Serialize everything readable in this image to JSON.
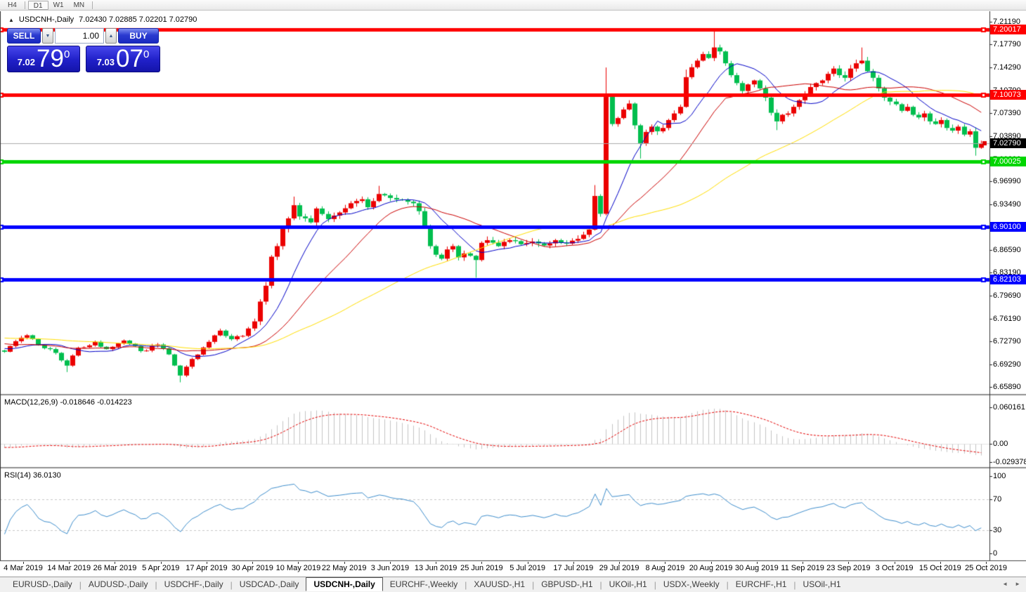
{
  "toolbar": {
    "timeframes": [
      {
        "label": "H4",
        "active": false
      },
      {
        "label": "D1",
        "active": true
      },
      {
        "label": "W1",
        "active": false
      },
      {
        "label": "MN",
        "active": false
      }
    ]
  },
  "chart_header": {
    "collapse_icon": "▲",
    "symbol_title": "USDCNH-,Daily",
    "ohlc_text": "7.02430 7.02885 7.02201 7.02790"
  },
  "trade_panel": {
    "sell_label": "SELL",
    "buy_label": "BUY",
    "volume_value": "1.00",
    "volume_down_icon": "▼",
    "volume_up_icon": "▲",
    "sell_price_small": "7.02",
    "sell_price_big": "79",
    "sell_price_sup": "0",
    "buy_price_small": "7.03",
    "buy_price_big": "07",
    "buy_price_sup": "0"
  },
  "pane_labels": {
    "macd": "MACD(12,26,9) -0.018646 -0.014223",
    "rsi": "RSI(14) 36.0130"
  },
  "chart_data": {
    "type": "candlestick_with_indicators",
    "symbol": "USDCNH-,Daily",
    "ohlc_display": [
      "7.02430",
      "7.02885",
      "7.02201",
      "7.02790"
    ],
    "y_axis_ticks": [
      "7.21190",
      "7.17790",
      "7.14290",
      "7.10790",
      "7.07390",
      "7.03890",
      "7.00390",
      "6.96990",
      "6.93490",
      "6.89990",
      "6.86590",
      "6.83190",
      "6.79690",
      "6.76190",
      "6.72790",
      "6.69290",
      "6.65890"
    ],
    "x_axis_labels": [
      "4 Mar 2019",
      "14 Mar 2019",
      "26 Mar 2019",
      "5 Apr 2019",
      "17 Apr 2019",
      "30 Apr 2019",
      "10 May 2019",
      "22 May 2019",
      "3 Jun 2019",
      "13 Jun 2019",
      "25 Jun 2019",
      "5 Jul 2019",
      "17 Jul 2019",
      "29 Jul 2019",
      "8 Aug 2019",
      "20 Aug 2019",
      "30 Aug 2019",
      "11 Sep 2019",
      "23 Sep 2019",
      "3 Oct 2019",
      "15 Oct 2019",
      "25 Oct 2019"
    ],
    "hlines": [
      {
        "price": 7.20017,
        "label": "7.20017",
        "color": "#ff0000"
      },
      {
        "price": 7.10073,
        "label": "7.10073",
        "color": "#ff0000"
      },
      {
        "price": 7.00025,
        "label": "7.00025",
        "color": "#00d600"
      },
      {
        "price": 6.901,
        "label": "6.90100",
        "color": "#0000ff"
      },
      {
        "price": 6.82103,
        "label": "6.82103",
        "color": "#0000ff"
      }
    ],
    "current_price": {
      "value": 7.0279,
      "label": "7.02790",
      "tag_color": "#000000"
    },
    "candle_count": 173,
    "pre_anchors": [
      [
        -60,
        6.758
      ],
      [
        -50,
        6.742
      ],
      [
        -40,
        6.732
      ],
      [
        -30,
        6.748
      ],
      [
        -20,
        6.738
      ],
      [
        -10,
        6.722
      ],
      [
        -5,
        6.718
      ],
      [
        -1,
        6.714
      ]
    ],
    "close_anchors": [
      [
        0,
        6.712
      ],
      [
        2,
        6.728
      ],
      [
        4,
        6.737
      ],
      [
        6,
        6.722
      ],
      [
        8,
        6.716
      ],
      [
        11,
        6.691
      ],
      [
        13,
        6.718
      ],
      [
        16,
        6.727
      ],
      [
        18,
        6.716
      ],
      [
        21,
        6.729
      ],
      [
        24,
        6.713
      ],
      [
        27,
        6.723
      ],
      [
        29,
        6.708
      ],
      [
        31,
        6.676
      ],
      [
        33,
        6.701
      ],
      [
        36,
        6.727
      ],
      [
        38,
        6.744
      ],
      [
        40,
        6.731
      ],
      [
        42,
        6.736
      ],
      [
        44,
        6.758
      ],
      [
        45,
        6.788
      ],
      [
        46,
        6.812
      ],
      [
        47,
        6.856
      ],
      [
        48,
        6.872
      ],
      [
        49,
        6.898
      ],
      [
        50,
        6.914
      ],
      [
        51,
        6.934
      ],
      [
        52,
        6.917
      ],
      [
        54,
        6.908
      ],
      [
        55,
        6.929
      ],
      [
        57,
        6.913
      ],
      [
        59,
        6.923
      ],
      [
        61,
        6.937
      ],
      [
        63,
        6.943
      ],
      [
        64,
        6.931
      ],
      [
        66,
        6.951
      ],
      [
        68,
        6.945
      ],
      [
        70,
        6.942
      ],
      [
        72,
        6.937
      ],
      [
        73,
        6.925
      ],
      [
        74,
        6.903
      ],
      [
        75,
        6.872
      ],
      [
        76,
        6.859
      ],
      [
        77,
        6.853
      ],
      [
        78,
        6.867
      ],
      [
        79,
        6.872
      ],
      [
        80,
        6.855
      ],
      [
        81,
        6.861
      ],
      [
        83,
        6.851
      ],
      [
        84,
        6.877
      ],
      [
        85,
        6.881
      ],
      [
        87,
        6.872
      ],
      [
        89,
        6.881
      ],
      [
        91,
        6.875
      ],
      [
        93,
        6.879
      ],
      [
        95,
        6.873
      ],
      [
        97,
        6.881
      ],
      [
        99,
        6.876
      ],
      [
        101,
        6.883
      ],
      [
        103,
        6.897
      ],
      [
        104,
        6.948
      ],
      [
        105,
        6.921
      ],
      [
        106,
        7.098
      ],
      [
        107,
        7.057
      ],
      [
        108,
        7.066
      ],
      [
        109,
        7.079
      ],
      [
        110,
        7.088
      ],
      [
        111,
        7.055
      ],
      [
        112,
        7.028
      ],
      [
        113,
        7.045
      ],
      [
        114,
        7.053
      ],
      [
        115,
        7.046
      ],
      [
        116,
        7.051
      ],
      [
        117,
        7.063
      ],
      [
        118,
        7.073
      ],
      [
        119,
        7.083
      ],
      [
        120,
        7.128
      ],
      [
        121,
        7.143
      ],
      [
        122,
        7.153
      ],
      [
        123,
        7.163
      ],
      [
        124,
        7.157
      ],
      [
        125,
        7.173
      ],
      [
        126,
        7.167
      ],
      [
        127,
        7.149
      ],
      [
        128,
        7.131
      ],
      [
        129,
        7.119
      ],
      [
        130,
        7.107
      ],
      [
        131,
        7.117
      ],
      [
        132,
        7.123
      ],
      [
        133,
        7.111
      ],
      [
        134,
        7.097
      ],
      [
        135,
        7.074
      ],
      [
        136,
        7.061
      ],
      [
        137,
        7.071
      ],
      [
        138,
        7.073
      ],
      [
        139,
        7.083
      ],
      [
        140,
        7.093
      ],
      [
        141,
        7.103
      ],
      [
        142,
        7.113
      ],
      [
        143,
        7.119
      ],
      [
        144,
        7.123
      ],
      [
        145,
        7.133
      ],
      [
        146,
        7.141
      ],
      [
        147,
        7.131
      ],
      [
        148,
        7.127
      ],
      [
        149,
        7.141
      ],
      [
        150,
        7.149
      ],
      [
        151,
        7.153
      ],
      [
        152,
        7.137
      ],
      [
        153,
        7.127
      ],
      [
        154,
        7.111
      ],
      [
        155,
        7.097
      ],
      [
        156,
        7.091
      ],
      [
        157,
        7.087
      ],
      [
        158,
        7.077
      ],
      [
        159,
        7.083
      ],
      [
        160,
        7.071
      ],
      [
        161,
        7.067
      ],
      [
        162,
        7.073
      ],
      [
        163,
        7.061
      ],
      [
        164,
        7.057
      ],
      [
        165,
        7.063
      ],
      [
        166,
        7.051
      ],
      [
        167,
        7.047
      ],
      [
        168,
        7.053
      ],
      [
        169,
        7.041
      ],
      [
        170,
        7.046
      ],
      [
        171,
        7.021
      ],
      [
        172,
        7.0279
      ]
    ],
    "special_wicks": [
      [
        11,
        0,
        -0.008
      ],
      [
        31,
        0,
        -0.009
      ],
      [
        51,
        0.01,
        0
      ],
      [
        66,
        0.011,
        0
      ],
      [
        83,
        0,
        -0.024
      ],
      [
        104,
        0.014,
        0
      ],
      [
        106,
        0.04,
        0
      ],
      [
        112,
        0,
        -0.02
      ],
      [
        120,
        0.008,
        0
      ],
      [
        125,
        0.02,
        0
      ],
      [
        136,
        0,
        -0.01
      ],
      [
        151,
        0.018,
        0
      ],
      [
        171,
        0,
        -0.01
      ]
    ],
    "moving_averages": [
      {
        "period": 10,
        "color": "#0000c8"
      },
      {
        "period": 22,
        "color": "#cc0000"
      },
      {
        "period": 50,
        "color": "#ffdf00"
      }
    ],
    "macd": {
      "fast": 12,
      "slow": 26,
      "signal": 9,
      "display_values": [
        -0.018646,
        -0.014223
      ],
      "axis_ticks": [
        "0.060161",
        "0.00",
        "-0.029378"
      ],
      "hist_color": "#c4c4c4",
      "signal_color": "#e60000"
    },
    "rsi": {
      "period": 14,
      "value": 36.013,
      "color": "#3e8ecd",
      "axis_ticks": [
        "100",
        "70",
        "30",
        "0"
      ],
      "levels": [
        70,
        30
      ],
      "levels_color": "#c8c8c8"
    },
    "colors": {
      "up": "#eb0000",
      "down": "#00be4e",
      "bid_line": "#ababab"
    }
  },
  "tabs": {
    "active_index": 4,
    "scroll_left_icon": "◄",
    "scroll_right_icon": "►",
    "items": [
      "EURUSD-,Daily",
      "AUDUSD-,Daily",
      "USDCHF-,Daily",
      "USDCAD-,Daily",
      "USDCNH-,Daily",
      "EURCHF-,Weekly",
      "XAUUSD-,H1",
      "GBPUSD-,H1",
      "UKOil-,H1",
      "USDX-,Weekly",
      "EURCHF-,H1",
      "USOil-,H1"
    ]
  }
}
